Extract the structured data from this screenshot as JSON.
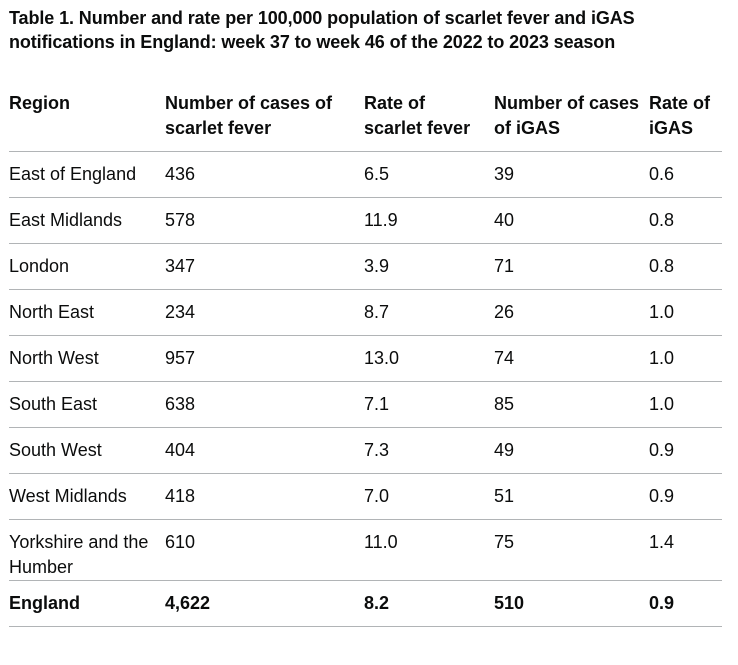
{
  "caption": "Table 1. Number and rate per 100,000 population of scarlet fever and iGAS notifications in England: week 37 to week 46 of the 2022 to 2023 season",
  "columns": [
    "Region",
    "Number of cases of scarlet fever",
    "Rate of scarlet fever",
    "Number of cases of iGAS",
    "Rate of iGAS"
  ],
  "rows": [
    [
      "East of England",
      "436",
      "6.5",
      "39",
      "0.6"
    ],
    [
      "East Midlands",
      "578",
      "11.9",
      "40",
      "0.8"
    ],
    [
      "London",
      "347",
      "3.9",
      "71",
      "0.8"
    ],
    [
      "North East",
      "234",
      "8.7",
      "26",
      "1.0"
    ],
    [
      "North West",
      "957",
      "13.0",
      "74",
      "1.0"
    ],
    [
      "South East",
      "638",
      "7.1",
      "85",
      "1.0"
    ],
    [
      "South West",
      "404",
      "7.3",
      "49",
      "0.9"
    ],
    [
      "West Midlands",
      "418",
      "7.0",
      "51",
      "0.9"
    ],
    [
      "Yorkshire and the Humber",
      "610",
      "11.0",
      "75",
      "1.4"
    ]
  ],
  "total": [
    "England",
    "4,622",
    "8.2",
    "510",
    "0.9"
  ]
}
